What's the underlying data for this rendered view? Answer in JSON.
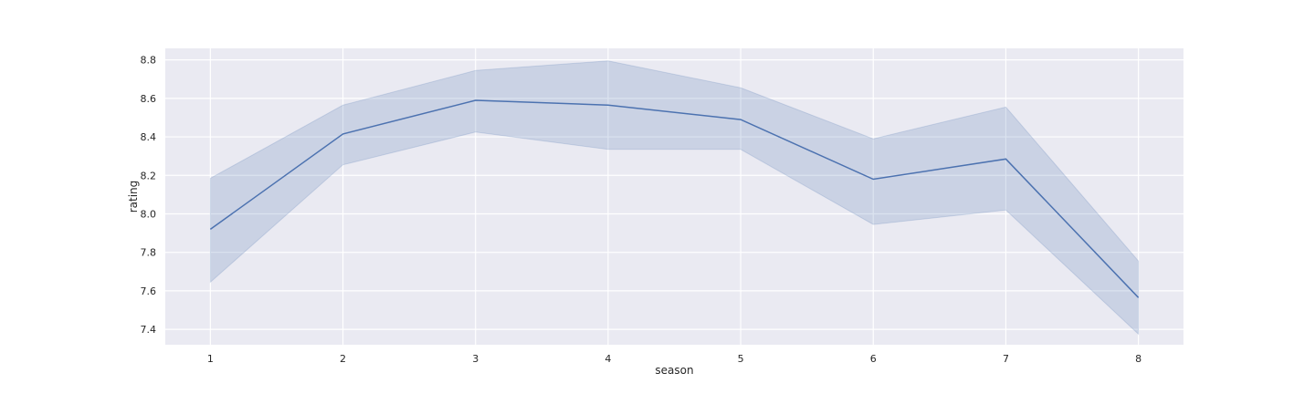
{
  "chart_data": {
    "type": "line",
    "xlabel": "season",
    "ylabel": "rating",
    "x": [
      1,
      2,
      3,
      4,
      5,
      6,
      7,
      8
    ],
    "xlim": [
      0.66,
      8.34
    ],
    "ylim": [
      7.32,
      8.86
    ],
    "yticks": [
      7.4,
      7.6,
      7.8,
      8.0,
      8.2,
      8.4,
      8.6,
      8.8
    ],
    "ytick_labels": [
      "7.4",
      "7.6",
      "7.8",
      "8.0",
      "8.2",
      "8.4",
      "8.6",
      "8.8"
    ],
    "xtick_labels": [
      "1",
      "2",
      "3",
      "4",
      "5",
      "6",
      "7",
      "8"
    ],
    "series": [
      {
        "values": [
          7.92,
          8.415,
          8.59,
          8.565,
          8.49,
          8.18,
          8.285,
          7.565
        ],
        "ci_upper": [
          8.185,
          8.565,
          8.745,
          8.795,
          8.655,
          8.39,
          8.555,
          7.755
        ],
        "ci_lower": [
          7.645,
          8.255,
          8.425,
          8.335,
          8.335,
          7.945,
          8.02,
          7.375
        ],
        "color": "#4c72b0"
      }
    ],
    "grid": true,
    "background": "#eaeaf2",
    "grid_color": "#ffffff"
  }
}
